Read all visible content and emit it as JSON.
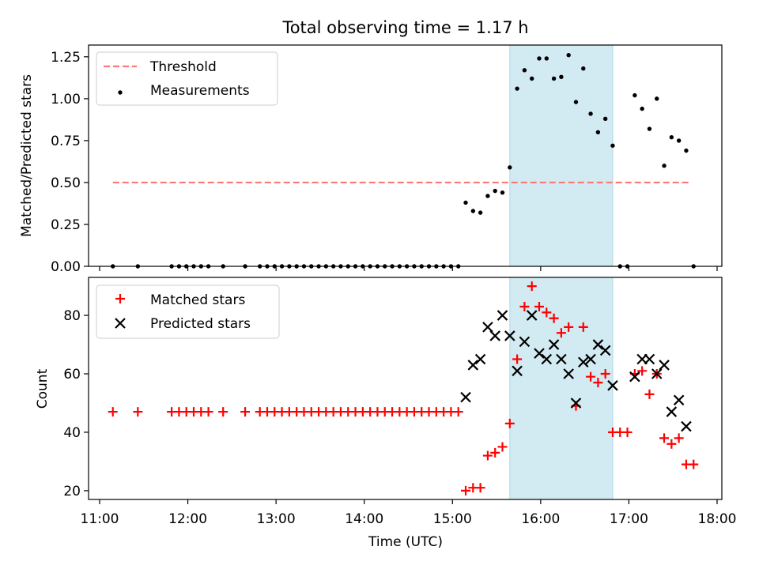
{
  "figure_title": "Total observing time = 1.17 h",
  "xlabel": "Time (UTC)",
  "x_tick_labels": [
    "11:00",
    "12:00",
    "13:00",
    "14:00",
    "15:00",
    "16:00",
    "17:00",
    "18:00"
  ],
  "colors": {
    "threshold": "#ff7777",
    "measurement": "#000000",
    "matched": "#ff0000",
    "predicted": "#000000",
    "span": "#add8e6"
  },
  "chart_data": [
    {
      "type": "scatter",
      "ylabel": "Matched/Predicted stars",
      "xlim": [
        "11:00",
        "18:00"
      ],
      "ylim": [
        0,
        1.32
      ],
      "y_ticks": [
        0.0,
        0.25,
        0.5,
        0.75,
        1.0,
        1.25
      ],
      "y_tick_labels": [
        "0.00",
        "0.25",
        "0.50",
        "0.75",
        "1.00",
        "1.25"
      ],
      "highlight_span": [
        "15:39",
        "16:49"
      ],
      "legend_position": "upper left",
      "threshold": {
        "name": "Threshold",
        "x": [
          "11:09",
          "17:42"
        ],
        "y": 0.5
      },
      "measurements": {
        "name": "Measurements",
        "points": [
          [
            "11:09",
            0
          ],
          [
            "11:26",
            0
          ],
          [
            "11:49",
            0
          ],
          [
            "11:54",
            0
          ],
          [
            "11:59",
            0
          ],
          [
            "12:04",
            0
          ],
          [
            "12:09",
            0
          ],
          [
            "12:14",
            0
          ],
          [
            "12:24",
            0
          ],
          [
            "12:39",
            0
          ],
          [
            "12:49",
            0
          ],
          [
            "12:54",
            0
          ],
          [
            "12:59",
            0
          ],
          [
            "13:04",
            0
          ],
          [
            "13:09",
            0
          ],
          [
            "13:14",
            0
          ],
          [
            "13:19",
            0
          ],
          [
            "13:24",
            0
          ],
          [
            "13:29",
            0
          ],
          [
            "13:34",
            0
          ],
          [
            "13:39",
            0
          ],
          [
            "13:44",
            0
          ],
          [
            "13:49",
            0
          ],
          [
            "13:54",
            0
          ],
          [
            "13:59",
            0
          ],
          [
            "14:04",
            0
          ],
          [
            "14:09",
            0
          ],
          [
            "14:14",
            0
          ],
          [
            "14:19",
            0
          ],
          [
            "14:24",
            0
          ],
          [
            "14:29",
            0
          ],
          [
            "14:34",
            0
          ],
          [
            "14:39",
            0
          ],
          [
            "14:44",
            0
          ],
          [
            "14:49",
            0
          ],
          [
            "14:54",
            0
          ],
          [
            "14:59",
            0
          ],
          [
            "15:04",
            0
          ],
          [
            "15:09",
            0.38
          ],
          [
            "15:14",
            0.33
          ],
          [
            "15:19",
            0.32
          ],
          [
            "15:24",
            0.42
          ],
          [
            "15:29",
            0.45
          ],
          [
            "15:34",
            0.44
          ],
          [
            "15:39",
            0.59
          ],
          [
            "15:44",
            1.06
          ],
          [
            "15:49",
            1.17
          ],
          [
            "15:54",
            1.12
          ],
          [
            "15:59",
            1.24
          ],
          [
            "16:04",
            1.24
          ],
          [
            "16:09",
            1.12
          ],
          [
            "16:14",
            1.13
          ],
          [
            "16:19",
            1.26
          ],
          [
            "16:24",
            0.98
          ],
          [
            "16:29",
            1.18
          ],
          [
            "16:34",
            0.91
          ],
          [
            "16:39",
            0.8
          ],
          [
            "16:44",
            0.88
          ],
          [
            "16:49",
            0.72
          ],
          [
            "16:54",
            0
          ],
          [
            "16:59",
            0
          ],
          [
            "17:04",
            1.02
          ],
          [
            "17:09",
            0.94
          ],
          [
            "17:14",
            0.82
          ],
          [
            "17:19",
            1.0
          ],
          [
            "17:24",
            0.6
          ],
          [
            "17:29",
            0.77
          ],
          [
            "17:34",
            0.75
          ],
          [
            "17:39",
            0.69
          ],
          [
            "17:44",
            0
          ]
        ]
      }
    },
    {
      "type": "scatter",
      "ylabel": "Count",
      "xlim": [
        "11:00",
        "18:00"
      ],
      "ylim": [
        17,
        93
      ],
      "y_ticks": [
        20,
        40,
        60,
        80
      ],
      "y_tick_labels": [
        "20",
        "40",
        "60",
        "80"
      ],
      "highlight_span": [
        "15:39",
        "16:49"
      ],
      "legend_position": "upper left",
      "series": [
        {
          "name": "Matched stars",
          "marker": "plus",
          "points": [
            [
              "11:09",
              47
            ],
            [
              "11:26",
              47
            ],
            [
              "11:49",
              47
            ],
            [
              "11:54",
              47
            ],
            [
              "11:59",
              47
            ],
            [
              "12:04",
              47
            ],
            [
              "12:09",
              47
            ],
            [
              "12:14",
              47
            ],
            [
              "12:24",
              47
            ],
            [
              "12:39",
              47
            ],
            [
              "12:49",
              47
            ],
            [
              "12:54",
              47
            ],
            [
              "12:59",
              47
            ],
            [
              "13:04",
              47
            ],
            [
              "13:09",
              47
            ],
            [
              "13:14",
              47
            ],
            [
              "13:19",
              47
            ],
            [
              "13:24",
              47
            ],
            [
              "13:29",
              47
            ],
            [
              "13:34",
              47
            ],
            [
              "13:39",
              47
            ],
            [
              "13:44",
              47
            ],
            [
              "13:49",
              47
            ],
            [
              "13:54",
              47
            ],
            [
              "13:59",
              47
            ],
            [
              "14:04",
              47
            ],
            [
              "14:09",
              47
            ],
            [
              "14:14",
              47
            ],
            [
              "14:19",
              47
            ],
            [
              "14:24",
              47
            ],
            [
              "14:29",
              47
            ],
            [
              "14:34",
              47
            ],
            [
              "14:39",
              47
            ],
            [
              "14:44",
              47
            ],
            [
              "14:49",
              47
            ],
            [
              "14:54",
              47
            ],
            [
              "14:59",
              47
            ],
            [
              "15:04",
              47
            ],
            [
              "15:09",
              20
            ],
            [
              "15:14",
              21
            ],
            [
              "15:19",
              21
            ],
            [
              "15:24",
              32
            ],
            [
              "15:29",
              33
            ],
            [
              "15:34",
              35
            ],
            [
              "15:39",
              43
            ],
            [
              "15:44",
              65
            ],
            [
              "15:49",
              83
            ],
            [
              "15:54",
              90
            ],
            [
              "15:59",
              83
            ],
            [
              "16:04",
              81
            ],
            [
              "16:09",
              79
            ],
            [
              "16:14",
              74
            ],
            [
              "16:19",
              76
            ],
            [
              "16:24",
              49
            ],
            [
              "16:29",
              76
            ],
            [
              "16:34",
              59
            ],
            [
              "16:39",
              57
            ],
            [
              "16:44",
              60
            ],
            [
              "16:49",
              40
            ],
            [
              "16:54",
              40
            ],
            [
              "16:59",
              40
            ],
            [
              "17:04",
              60
            ],
            [
              "17:09",
              61
            ],
            [
              "17:14",
              53
            ],
            [
              "17:19",
              60
            ],
            [
              "17:24",
              38
            ],
            [
              "17:29",
              36
            ],
            [
              "17:34",
              38
            ],
            [
              "17:39",
              29
            ],
            [
              "17:44",
              29
            ]
          ]
        },
        {
          "name": "Predicted stars",
          "marker": "x",
          "points": [
            [
              "15:09",
              52
            ],
            [
              "15:14",
              63
            ],
            [
              "15:19",
              65
            ],
            [
              "15:24",
              76
            ],
            [
              "15:29",
              73
            ],
            [
              "15:34",
              80
            ],
            [
              "15:39",
              73
            ],
            [
              "15:44",
              61
            ],
            [
              "15:49",
              71
            ],
            [
              "15:54",
              80
            ],
            [
              "15:59",
              67
            ],
            [
              "16:04",
              65
            ],
            [
              "16:09",
              70
            ],
            [
              "16:14",
              65
            ],
            [
              "16:19",
              60
            ],
            [
              "16:24",
              50
            ],
            [
              "16:29",
              64
            ],
            [
              "16:34",
              65
            ],
            [
              "16:39",
              70
            ],
            [
              "16:44",
              68
            ],
            [
              "16:49",
              56
            ],
            [
              "17:04",
              59
            ],
            [
              "17:09",
              65
            ],
            [
              "17:14",
              65
            ],
            [
              "17:19",
              60
            ],
            [
              "17:24",
              63
            ],
            [
              "17:29",
              47
            ],
            [
              "17:34",
              51
            ],
            [
              "17:39",
              42
            ]
          ]
        }
      ]
    }
  ]
}
